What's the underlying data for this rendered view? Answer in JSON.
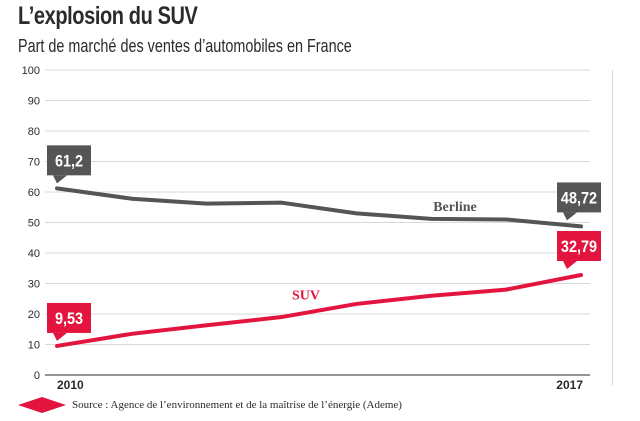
{
  "title": "L’explosion du SUV",
  "subtitle": "Part de marché des ventes d’automobiles en France",
  "source": "Source : Agence de l’environnement et de la maîtrise de l’énergie (Ademe)",
  "colors": {
    "berline": "#555555",
    "suv": "#e3153f",
    "grid": "#d9d9d9",
    "text": "#2b2b2b"
  },
  "chart_data": {
    "type": "line",
    "x": [
      2010,
      2011,
      2012,
      2013,
      2014,
      2015,
      2016,
      2017
    ],
    "x_tick_labels": [
      {
        "x": 2010,
        "label": "2010"
      },
      {
        "x": 2017,
        "label": "2017"
      }
    ],
    "y_ticks": [
      0,
      10,
      20,
      30,
      40,
      50,
      60,
      70,
      80,
      90,
      100
    ],
    "ylim": [
      0,
      100
    ],
    "grid": "horizontal",
    "series": [
      {
        "name": "Berline",
        "color": "#555555",
        "values": [
          61.2,
          57.8,
          56.2,
          56.5,
          53.0,
          51.2,
          51.0,
          48.72
        ],
        "start_label": "61,2",
        "end_label": "48,72"
      },
      {
        "name": "SUV",
        "color": "#e3153f",
        "values": [
          9.53,
          13.5,
          16.3,
          19.0,
          23.3,
          26.0,
          28.0,
          32.79
        ],
        "start_label": "9,53",
        "end_label": "32,79"
      }
    ]
  }
}
